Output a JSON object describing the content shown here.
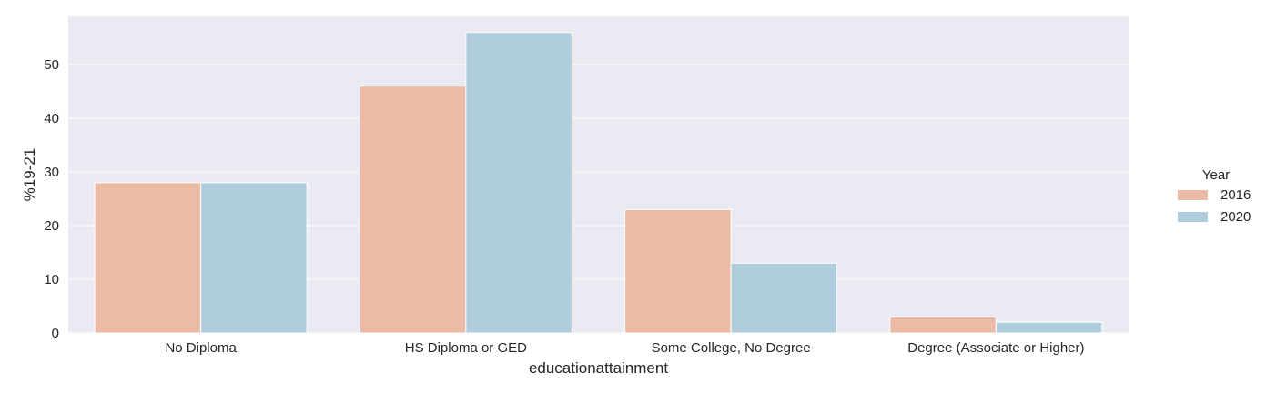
{
  "chart_data": {
    "type": "bar",
    "title": "",
    "xlabel": "educationattainment",
    "ylabel": "%19-21",
    "categories": [
      "No Diploma",
      "HS Diploma or GED",
      "Some College, No Degree",
      "Degree (Associate or Higher)"
    ],
    "series": [
      {
        "name": "2016",
        "values": [
          28,
          46,
          23,
          3
        ],
        "color": "#ecbba5"
      },
      {
        "name": "2020",
        "values": [
          28,
          56,
          13,
          2
        ],
        "color": "#afcddc"
      }
    ],
    "ylim": [
      0,
      59
    ],
    "yticks": [
      0,
      10,
      20,
      30,
      40,
      50
    ],
    "grid": true,
    "legend": {
      "title": "Year",
      "placement": "right"
    },
    "colors": {
      "plot_background": "#eaeaf2",
      "grid": "#ffffff"
    }
  }
}
